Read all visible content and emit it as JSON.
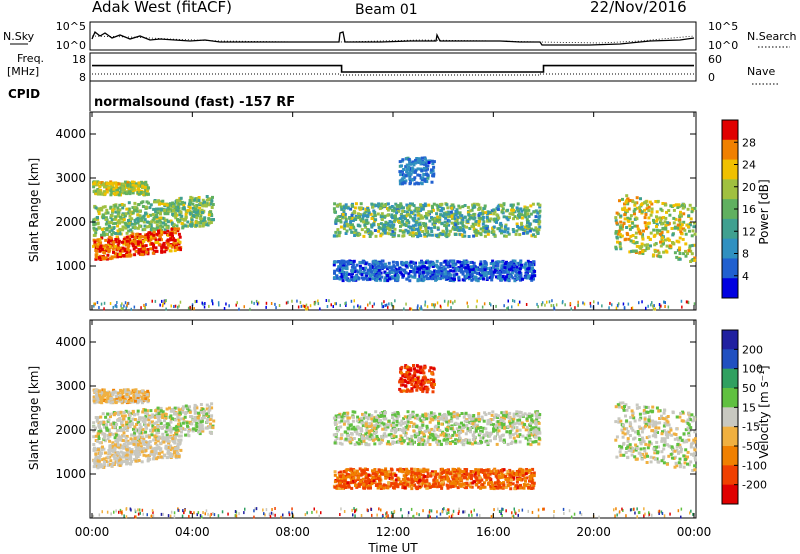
{
  "header": {
    "station": "Adak West (fitACF)",
    "beam": "Beam 01",
    "date": "22/Nov/2016"
  },
  "strip1": {
    "left_label": "N.Sky",
    "right_label": "N.Search",
    "left_ticks": [
      "10^5",
      "10^0"
    ],
    "right_ticks": [
      "10^5",
      "10^0"
    ]
  },
  "strip2": {
    "left_label_1": "Freq.",
    "left_label_2": "[MHz]",
    "right_label": "Nave",
    "left_ticks": [
      "18",
      "8"
    ],
    "right_ticks": [
      "60",
      "0"
    ]
  },
  "cpid": {
    "label": "CPID",
    "text": "normalsound (fast) -157 RF"
  },
  "x_axis": {
    "ticks": [
      "00:00",
      "04:00",
      "08:00",
      "12:00",
      "16:00",
      "20:00",
      "00:00"
    ],
    "label": "Time UT"
  },
  "panel_power": {
    "ylabel": "Slant Range [km]",
    "yticks": [
      "4000",
      "3000",
      "2000",
      "1000"
    ],
    "colorbar_label": "Power [dB]",
    "colorbar_ticks": [
      "28",
      "24",
      "20",
      "16",
      "12",
      "8",
      "4"
    ]
  },
  "panel_velocity": {
    "ylabel": "Slant Range [km]",
    "yticks": [
      "4000",
      "3000",
      "2000",
      "1000"
    ],
    "colorbar_label": "Velocity [m s⁻¹]",
    "colorbar_ticks": [
      "200",
      "100",
      "50",
      "15",
      "-15",
      "-50",
      "-100",
      "-200"
    ]
  },
  "chart_data": [
    {
      "type": "line",
      "name": "frequency",
      "x_hours": [
        0,
        9.95,
        9.95,
        18,
        18,
        24
      ],
      "values": [
        13.5,
        13.5,
        11.2,
        11.2,
        13.5,
        13.5
      ],
      "ylim": [
        8,
        18
      ]
    },
    {
      "type": "heatmap",
      "name": "power",
      "xlim_hours": [
        0,
        24
      ],
      "ylim_km": [
        0,
        4500
      ],
      "colorscale": [
        "#0000e0",
        "#2060d0",
        "#3090c0",
        "#40a090",
        "#60b060",
        "#a0c040",
        "#f0c000",
        "#f08000",
        "#e00000"
      ],
      "vmin": 0,
      "vmax": 30
    },
    {
      "type": "heatmap",
      "name": "velocity",
      "xlim_hours": [
        0,
        24
      ],
      "ylim_km": [
        0,
        4500
      ],
      "colorscale": [
        "#e00000",
        "#f04000",
        "#f08000",
        "#f0b040",
        "#c8c8c0",
        "#60c040",
        "#30a060",
        "#2050c0",
        "#2020a0"
      ],
      "vmin": -250,
      "vmax": 250
    }
  ]
}
